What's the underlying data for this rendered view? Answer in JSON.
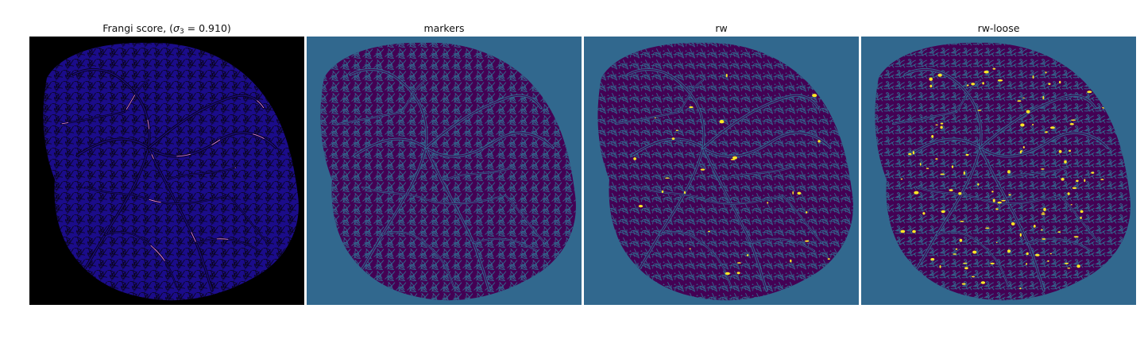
{
  "panels": [
    {
      "id": "frangi",
      "title_prefix": "Frangi score, (",
      "title_symbol": "σ",
      "title_subscript": "3",
      "title_suffix": " = 0.910)",
      "background": "#000000",
      "tissue_color": "#1b0c8a",
      "vessel_color": "#0a0420",
      "highlight_color": "#f08ad0",
      "highlight_count": 0
    },
    {
      "id": "markers",
      "title": "markers",
      "background": "#31688e",
      "tissue_color": "#440154",
      "vessel_color": "#31688e",
      "highlight_color": "#fde725",
      "highlight_count": 0
    },
    {
      "id": "rw",
      "title": "rw",
      "background": "#31688e",
      "tissue_color": "#440154",
      "vessel_color": "#31688e",
      "highlight_color": "#fde725",
      "highlight_count": 30
    },
    {
      "id": "rw-loose",
      "title": "rw-loose",
      "background": "#31688e",
      "tissue_color": "#440154",
      "vessel_color": "#31688e",
      "highlight_color": "#fde725",
      "highlight_count": 110
    }
  ]
}
